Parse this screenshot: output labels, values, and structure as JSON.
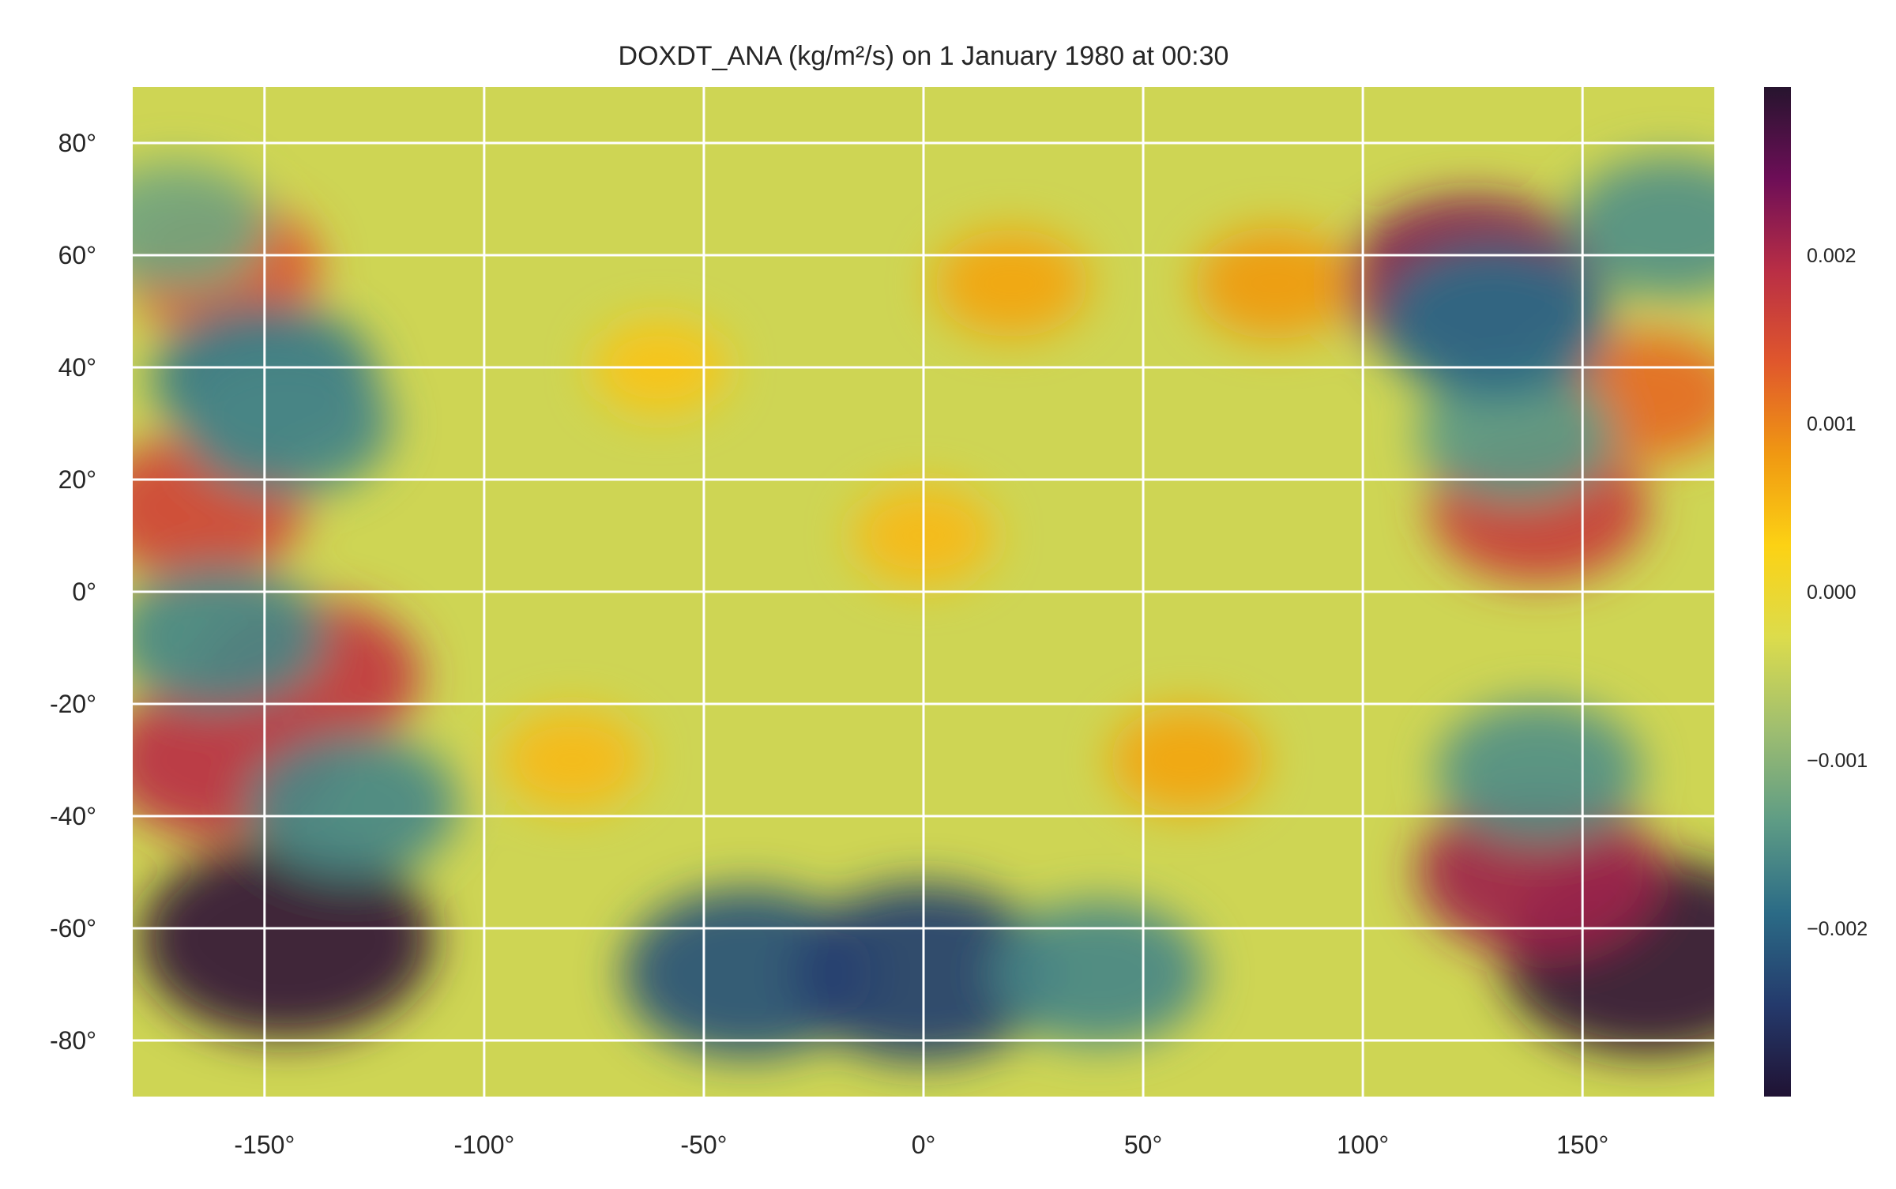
{
  "chart_data": {
    "type": "heatmap",
    "title": "DOXDT_ANA (kg/m²/s) on 1 January 1980 at 00:30",
    "xlabel": "",
    "ylabel": "",
    "xlim": [
      -180,
      180
    ],
    "ylim": [
      -90,
      90
    ],
    "grid": true,
    "colormap": "inferno-to-viridis diverging",
    "x_ticks": [
      -150,
      -100,
      -50,
      0,
      50,
      100,
      150
    ],
    "x_tick_labels": [
      "-150°",
      "-100°",
      "-50°",
      "0°",
      "50°",
      "100°",
      "150°"
    ],
    "y_ticks": [
      80,
      60,
      40,
      20,
      0,
      -20,
      -40,
      -60,
      -80
    ],
    "y_tick_labels": [
      "80°",
      "60°",
      "40°",
      "20°",
      "0°",
      "-20°",
      "-40°",
      "-60°",
      "-80°"
    ],
    "colorbar": {
      "range": [
        -0.003,
        0.003
      ],
      "ticks": [
        0.002,
        0.001,
        0.0,
        -0.001,
        -0.002
      ],
      "tick_labels": [
        "0.002",
        "0.001",
        "0.000",
        "−0.001",
        "−0.002"
      ],
      "colors": [
        "#26142e",
        "#6d0e57",
        "#b92e45",
        "#e0572c",
        "#f09812",
        "#fcd214",
        "#dcdc4c",
        "#9fbe70",
        "#5e9c85",
        "#2b6b86",
        "#243a6c",
        "#201233"
      ]
    },
    "features": [
      {
        "lon": -145,
        "lat": -62,
        "value": 0.0029
      },
      {
        "lon": 165,
        "lat": -65,
        "value": 0.0029
      },
      {
        "lon": -160,
        "lat": -30,
        "value": 0.0019
      },
      {
        "lon": -140,
        "lat": -15,
        "value": 0.0018
      },
      {
        "lon": -165,
        "lat": 15,
        "value": 0.0016
      },
      {
        "lon": -160,
        "lat": 58,
        "value": 0.0014
      },
      {
        "lon": 125,
        "lat": 55,
        "value": 0.0023
      },
      {
        "lon": 140,
        "lat": 15,
        "value": 0.0017
      },
      {
        "lon": 165,
        "lat": 35,
        "value": 0.0012
      },
      {
        "lon": 140,
        "lat": -50,
        "value": 0.0021
      },
      {
        "lon": -40,
        "lat": -68,
        "value": -0.0022
      },
      {
        "lon": 0,
        "lat": -68,
        "value": -0.0024
      },
      {
        "lon": 40,
        "lat": -68,
        "value": -0.0016
      },
      {
        "lon": -150,
        "lat": 38,
        "value": -0.0018
      },
      {
        "lon": -145,
        "lat": 30,
        "value": -0.0016
      },
      {
        "lon": -160,
        "lat": -8,
        "value": -0.0016
      },
      {
        "lon": -130,
        "lat": -38,
        "value": -0.0016
      },
      {
        "lon": 140,
        "lat": -32,
        "value": -0.0015
      },
      {
        "lon": 135,
        "lat": 28,
        "value": -0.0014
      },
      {
        "lon": 130,
        "lat": 48,
        "value": -0.0019
      },
      {
        "lon": -170,
        "lat": 65,
        "value": -0.0012
      },
      {
        "lon": 170,
        "lat": 65,
        "value": -0.0015
      },
      {
        "lon": 20,
        "lat": 55,
        "value": 0.0007
      },
      {
        "lon": 80,
        "lat": 55,
        "value": 0.0008
      },
      {
        "lon": 0,
        "lat": 10,
        "value": 0.0005
      },
      {
        "lon": -60,
        "lat": 40,
        "value": 0.0004
      },
      {
        "lon": 60,
        "lat": -30,
        "value": 0.0007
      },
      {
        "lon": -80,
        "lat": -30,
        "value": 0.0005
      }
    ]
  }
}
